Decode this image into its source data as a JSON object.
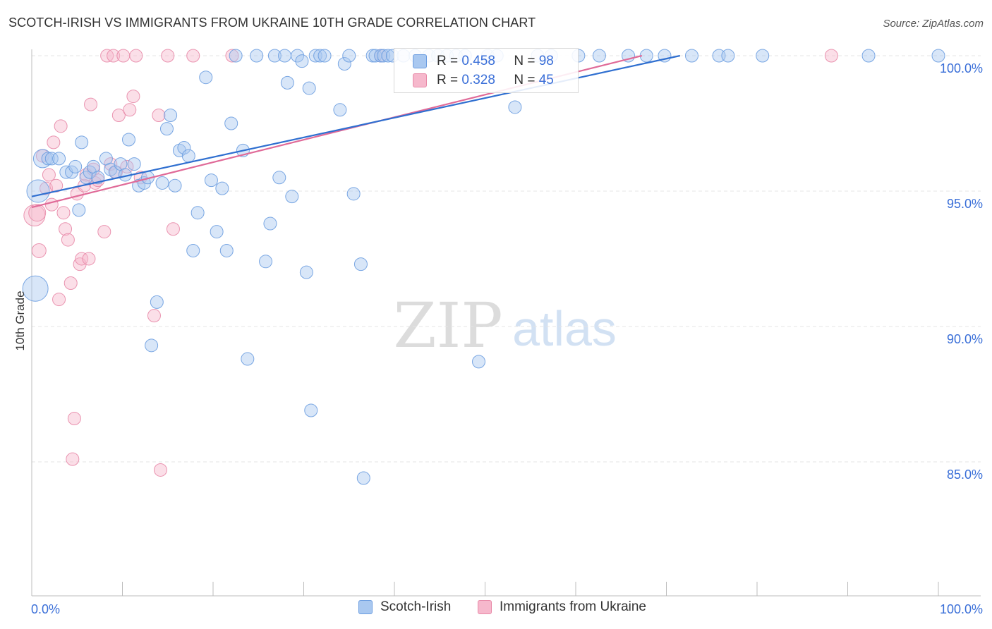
{
  "header": {
    "title": "SCOTCH-IRISH VS IMMIGRANTS FROM UKRAINE 10TH GRADE CORRELATION CHART",
    "source": "Source: ZipAtlas.com"
  },
  "watermark": {
    "zip": "ZIP",
    "atlas": "atlas"
  },
  "stats": {
    "r_label": "R =",
    "n_label": "N =",
    "rows": [
      {
        "series": "Scotch-Irish",
        "r": "0.458",
        "n": "98"
      },
      {
        "series": "Immigrants from Ukraine",
        "r": "0.328",
        "n": "45"
      }
    ]
  },
  "colors": {
    "blue_fill": "#a9c8f0",
    "blue_stroke": "#6c9de0",
    "blue_line": "#2f6fd0",
    "pink_fill": "#f6b8cc",
    "pink_stroke": "#e88aa8",
    "pink_line": "#e06a98",
    "tick_text": "#3a6fd8",
    "grid": "#e4e4e4"
  },
  "chart_data": {
    "type": "scatter",
    "title": "SCOTCH-IRISH VS IMMIGRANTS FROM UKRAINE 10TH GRADE CORRELATION CHART",
    "xlabel": "",
    "ylabel": "10th Grade",
    "xlim": [
      0,
      100
    ],
    "ylim": [
      80.5,
      100.5
    ],
    "x_ticks": [
      0,
      10,
      20,
      30,
      40,
      50,
      60,
      70,
      80,
      90,
      100
    ],
    "x_tick_labels": [
      {
        "value": 0,
        "label": "0.0%"
      },
      {
        "value": 100,
        "label": "100.0%"
      }
    ],
    "y_ticks": [
      {
        "value": 85,
        "label": "85.0%"
      },
      {
        "value": 90,
        "label": "90.0%"
      },
      {
        "value": 95,
        "label": "95.0%"
      },
      {
        "value": 100,
        "label": "100.0%"
      }
    ],
    "grid": true,
    "legend_position": "bottom-center",
    "series": [
      {
        "name": "Scotch-Irish",
        "color": "#a9c8f0",
        "trend": {
          "x": [
            0,
            71.5
          ],
          "y": [
            94.8,
            100
          ]
        },
        "points": [
          {
            "x": 0.4,
            "y": 91.4,
            "s": 18
          },
          {
            "x": 0.7,
            "y": 95.0,
            "s": 16
          },
          {
            "x": 1.2,
            "y": 96.2,
            "s": 13
          },
          {
            "x": 1.8,
            "y": 96.2,
            "s": 9
          },
          {
            "x": 2.2,
            "y": 96.2,
            "s": 9
          },
          {
            "x": 3.0,
            "y": 96.2,
            "s": 9
          },
          {
            "x": 3.8,
            "y": 95.7,
            "s": 9
          },
          {
            "x": 4.4,
            "y": 95.7,
            "s": 9
          },
          {
            "x": 4.8,
            "y": 95.9,
            "s": 9
          },
          {
            "x": 5.5,
            "y": 96.8,
            "s": 9
          },
          {
            "x": 5.2,
            "y": 94.3,
            "s": 9
          },
          {
            "x": 6.0,
            "y": 95.5,
            "s": 9
          },
          {
            "x": 6.4,
            "y": 95.7,
            "s": 9
          },
          {
            "x": 6.8,
            "y": 95.9,
            "s": 9
          },
          {
            "x": 7.3,
            "y": 95.5,
            "s": 9
          },
          {
            "x": 8.2,
            "y": 96.2,
            "s": 9
          },
          {
            "x": 8.7,
            "y": 95.8,
            "s": 9
          },
          {
            "x": 9.2,
            "y": 95.7,
            "s": 9
          },
          {
            "x": 9.8,
            "y": 96.0,
            "s": 9
          },
          {
            "x": 10.3,
            "y": 95.6,
            "s": 9
          },
          {
            "x": 10.7,
            "y": 96.9,
            "s": 9
          },
          {
            "x": 11.3,
            "y": 96.0,
            "s": 9
          },
          {
            "x": 11.8,
            "y": 95.2,
            "s": 9
          },
          {
            "x": 12.4,
            "y": 95.3,
            "s": 9
          },
          {
            "x": 12.8,
            "y": 95.5,
            "s": 9
          },
          {
            "x": 13.2,
            "y": 89.3,
            "s": 9
          },
          {
            "x": 13.8,
            "y": 90.9,
            "s": 9
          },
          {
            "x": 14.4,
            "y": 95.3,
            "s": 9
          },
          {
            "x": 14.9,
            "y": 97.3,
            "s": 9
          },
          {
            "x": 15.3,
            "y": 97.8,
            "s": 9
          },
          {
            "x": 15.8,
            "y": 95.2,
            "s": 9
          },
          {
            "x": 16.3,
            "y": 96.5,
            "s": 9
          },
          {
            "x": 16.8,
            "y": 96.6,
            "s": 9
          },
          {
            "x": 17.3,
            "y": 96.3,
            "s": 9
          },
          {
            "x": 17.8,
            "y": 92.8,
            "s": 9
          },
          {
            "x": 18.3,
            "y": 94.2,
            "s": 9
          },
          {
            "x": 19.2,
            "y": 99.2,
            "s": 9
          },
          {
            "x": 19.8,
            "y": 95.4,
            "s": 9
          },
          {
            "x": 20.4,
            "y": 93.5,
            "s": 9
          },
          {
            "x": 21.0,
            "y": 95.1,
            "s": 9
          },
          {
            "x": 21.5,
            "y": 92.8,
            "s": 9
          },
          {
            "x": 22.0,
            "y": 97.5,
            "s": 9
          },
          {
            "x": 22.5,
            "y": 100.0,
            "s": 9
          },
          {
            "x": 23.3,
            "y": 96.5,
            "s": 9
          },
          {
            "x": 23.8,
            "y": 88.8,
            "s": 9
          },
          {
            "x": 24.8,
            "y": 100.0,
            "s": 9
          },
          {
            "x": 25.8,
            "y": 92.4,
            "s": 9
          },
          {
            "x": 26.3,
            "y": 93.8,
            "s": 9
          },
          {
            "x": 26.8,
            "y": 100.0,
            "s": 9
          },
          {
            "x": 27.3,
            "y": 95.5,
            "s": 9
          },
          {
            "x": 27.9,
            "y": 100.0,
            "s": 9
          },
          {
            "x": 28.2,
            "y": 99.0,
            "s": 9
          },
          {
            "x": 28.7,
            "y": 94.8,
            "s": 9
          },
          {
            "x": 29.3,
            "y": 100.0,
            "s": 9
          },
          {
            "x": 29.8,
            "y": 99.8,
            "s": 9
          },
          {
            "x": 30.3,
            "y": 92.0,
            "s": 9
          },
          {
            "x": 30.6,
            "y": 98.8,
            "s": 9
          },
          {
            "x": 30.8,
            "y": 86.9,
            "s": 9
          },
          {
            "x": 31.3,
            "y": 100.0,
            "s": 9
          },
          {
            "x": 31.8,
            "y": 100.0,
            "s": 9
          },
          {
            "x": 32.3,
            "y": 100.0,
            "s": 9
          },
          {
            "x": 34.0,
            "y": 98.0,
            "s": 9
          },
          {
            "x": 34.5,
            "y": 99.7,
            "s": 9
          },
          {
            "x": 35.0,
            "y": 100.0,
            "s": 9
          },
          {
            "x": 35.5,
            "y": 94.9,
            "s": 9
          },
          {
            "x": 36.3,
            "y": 92.3,
            "s": 9
          },
          {
            "x": 36.6,
            "y": 84.4,
            "s": 9
          },
          {
            "x": 37.6,
            "y": 100.0,
            "s": 9
          },
          {
            "x": 37.9,
            "y": 100.0,
            "s": 9
          },
          {
            "x": 38.5,
            "y": 100.0,
            "s": 9
          },
          {
            "x": 38.8,
            "y": 100.0,
            "s": 9
          },
          {
            "x": 39.3,
            "y": 100.0,
            "s": 9
          },
          {
            "x": 39.8,
            "y": 100.0,
            "s": 9
          },
          {
            "x": 41.0,
            "y": 100.0,
            "s": 9
          },
          {
            "x": 42.3,
            "y": 100.0,
            "s": 9
          },
          {
            "x": 43.8,
            "y": 100.0,
            "s": 9
          },
          {
            "x": 44.8,
            "y": 100.0,
            "s": 9
          },
          {
            "x": 45.8,
            "y": 100.0,
            "s": 9
          },
          {
            "x": 46.8,
            "y": 100.0,
            "s": 9
          },
          {
            "x": 47.8,
            "y": 100.0,
            "s": 9
          },
          {
            "x": 49.3,
            "y": 88.7,
            "s": 9
          },
          {
            "x": 50.3,
            "y": 100.0,
            "s": 9
          },
          {
            "x": 51.3,
            "y": 100.0,
            "s": 9
          },
          {
            "x": 53.3,
            "y": 98.1,
            "s": 9
          },
          {
            "x": 55.8,
            "y": 100.0,
            "s": 9
          },
          {
            "x": 57.3,
            "y": 100.0,
            "s": 9
          },
          {
            "x": 60.3,
            "y": 100.0,
            "s": 9
          },
          {
            "x": 62.6,
            "y": 100.0,
            "s": 9
          },
          {
            "x": 65.8,
            "y": 100.0,
            "s": 9
          },
          {
            "x": 67.8,
            "y": 100.0,
            "s": 9
          },
          {
            "x": 69.8,
            "y": 100.0,
            "s": 9
          },
          {
            "x": 72.8,
            "y": 100.0,
            "s": 9
          },
          {
            "x": 75.8,
            "y": 100.0,
            "s": 9
          },
          {
            "x": 76.8,
            "y": 100.0,
            "s": 9
          },
          {
            "x": 80.6,
            "y": 100.0,
            "s": 9
          },
          {
            "x": 92.3,
            "y": 100.0,
            "s": 9
          },
          {
            "x": 100.0,
            "y": 100.0,
            "s": 9
          }
        ]
      },
      {
        "name": "Immigrants from Ukraine",
        "color": "#f6b8cc",
        "trend": {
          "x": [
            0,
            67.3
          ],
          "y": [
            94.4,
            100
          ]
        },
        "points": [
          {
            "x": 0.3,
            "y": 94.1,
            "s": 15
          },
          {
            "x": 0.6,
            "y": 94.2,
            "s": 12
          },
          {
            "x": 0.8,
            "y": 92.8,
            "s": 10
          },
          {
            "x": 1.2,
            "y": 96.3,
            "s": 9
          },
          {
            "x": 1.6,
            "y": 95.1,
            "s": 9
          },
          {
            "x": 1.9,
            "y": 95.6,
            "s": 9
          },
          {
            "x": 2.2,
            "y": 94.5,
            "s": 9
          },
          {
            "x": 2.4,
            "y": 96.8,
            "s": 9
          },
          {
            "x": 2.7,
            "y": 95.2,
            "s": 9
          },
          {
            "x": 3.0,
            "y": 91.0,
            "s": 9
          },
          {
            "x": 3.2,
            "y": 97.4,
            "s": 9
          },
          {
            "x": 3.5,
            "y": 94.2,
            "s": 9
          },
          {
            "x": 3.7,
            "y": 93.6,
            "s": 9
          },
          {
            "x": 4.0,
            "y": 93.2,
            "s": 9
          },
          {
            "x": 4.3,
            "y": 91.6,
            "s": 9
          },
          {
            "x": 4.5,
            "y": 85.1,
            "s": 9
          },
          {
            "x": 4.7,
            "y": 86.6,
            "s": 9
          },
          {
            "x": 5.0,
            "y": 94.9,
            "s": 9
          },
          {
            "x": 5.3,
            "y": 92.3,
            "s": 9
          },
          {
            "x": 5.5,
            "y": 92.5,
            "s": 9
          },
          {
            "x": 5.8,
            "y": 95.2,
            "s": 9
          },
          {
            "x": 6.0,
            "y": 95.6,
            "s": 9
          },
          {
            "x": 6.3,
            "y": 92.5,
            "s": 9
          },
          {
            "x": 6.5,
            "y": 98.2,
            "s": 9
          },
          {
            "x": 6.8,
            "y": 95.8,
            "s": 9
          },
          {
            "x": 7.0,
            "y": 95.3,
            "s": 9
          },
          {
            "x": 7.3,
            "y": 95.4,
            "s": 9
          },
          {
            "x": 8.0,
            "y": 93.5,
            "s": 9
          },
          {
            "x": 8.3,
            "y": 100.0,
            "s": 9
          },
          {
            "x": 8.7,
            "y": 96.0,
            "s": 9
          },
          {
            "x": 9.0,
            "y": 100.0,
            "s": 9
          },
          {
            "x": 9.3,
            "y": 95.7,
            "s": 9
          },
          {
            "x": 9.6,
            "y": 97.8,
            "s": 9
          },
          {
            "x": 10.1,
            "y": 100.0,
            "s": 9
          },
          {
            "x": 10.5,
            "y": 95.9,
            "s": 9
          },
          {
            "x": 10.8,
            "y": 98.0,
            "s": 9
          },
          {
            "x": 11.2,
            "y": 98.5,
            "s": 9
          },
          {
            "x": 11.5,
            "y": 100.0,
            "s": 9
          },
          {
            "x": 12.0,
            "y": 95.5,
            "s": 9
          },
          {
            "x": 13.5,
            "y": 90.4,
            "s": 9
          },
          {
            "x": 14.0,
            "y": 97.8,
            "s": 9
          },
          {
            "x": 14.2,
            "y": 84.7,
            "s": 9
          },
          {
            "x": 15.0,
            "y": 100.0,
            "s": 9
          },
          {
            "x": 15.6,
            "y": 93.6,
            "s": 9
          },
          {
            "x": 17.8,
            "y": 100.0,
            "s": 9
          },
          {
            "x": 22.1,
            "y": 100.0,
            "s": 9
          },
          {
            "x": 38.5,
            "y": 100.0,
            "s": 9
          },
          {
            "x": 88.2,
            "y": 100.0,
            "s": 9
          }
        ]
      }
    ]
  }
}
